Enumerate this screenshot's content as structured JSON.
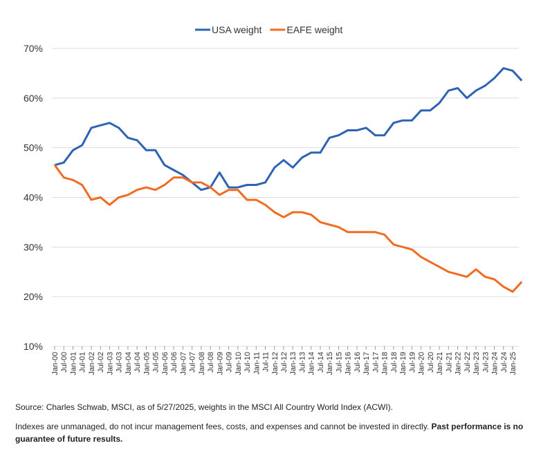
{
  "chart_data": {
    "type": "line",
    "categories": [
      "Jan-00",
      "Jul-00",
      "Jan-01",
      "Jul-01",
      "Jan-02",
      "Jul-02",
      "Jan-03",
      "Jul-03",
      "Jan-04",
      "Jul-04",
      "Jan-05",
      "Jul-05",
      "Jan-06",
      "Jul-06",
      "Jan-07",
      "Jul-07",
      "Jan-08",
      "Jul-08",
      "Jan-09",
      "Jul-09",
      "Jan-10",
      "Jul-10",
      "Jan-11",
      "Jul-11",
      "Jan-12",
      "Jul-12",
      "Jan-13",
      "Jul-13",
      "Jan-14",
      "Jul-14",
      "Jan-15",
      "Jul-15",
      "Jan-16",
      "Jul-16",
      "Jan-17",
      "Jul-17",
      "Jan-18",
      "Jul-18",
      "Jan-19",
      "Jul-19",
      "Jan-20",
      "Jul-20",
      "Jan-21",
      "Jul-21",
      "Jan-22",
      "Jul-22",
      "Jan-23",
      "Jul-23",
      "Jan-24",
      "Jul-24",
      "Jan-25",
      null
    ],
    "series": [
      {
        "name": "USA weight",
        "color": "#2e62b5",
        "values": [
          46.5,
          47,
          49.5,
          50.5,
          54,
          54.5,
          55,
          54,
          52,
          51.5,
          49.5,
          49.5,
          46.5,
          45.5,
          44.5,
          43,
          41.5,
          42,
          45,
          42,
          42,
          42.5,
          42.5,
          43,
          46,
          47.5,
          46,
          48,
          49,
          49,
          52,
          52.5,
          53.5,
          53.5,
          54,
          52.5,
          52.5,
          55,
          55.5,
          55.5,
          57.5,
          57.5,
          59,
          61.5,
          62,
          60,
          61.5,
          62.5,
          64,
          66,
          65.5,
          63.5
        ]
      },
      {
        "name": "EAFE weight",
        "color": "#f26b21",
        "values": [
          46.5,
          44,
          43.5,
          42.5,
          39.5,
          40,
          38.5,
          40,
          40.5,
          41.5,
          42,
          41.5,
          42.5,
          44,
          44,
          43,
          43,
          42,
          40.5,
          41.5,
          41.5,
          39.5,
          39.5,
          38.5,
          37,
          36,
          37,
          37,
          36.5,
          35,
          34.5,
          34,
          33,
          33,
          33,
          33,
          32.5,
          30.5,
          30,
          29.5,
          28,
          27,
          26,
          25,
          24.5,
          24,
          25.5,
          24,
          23.5,
          22,
          21,
          23
        ]
      }
    ],
    "ylim": [
      10,
      70
    ],
    "yticks": [
      {
        "value": 10,
        "label": "10%"
      },
      {
        "value": 20,
        "label": "20%"
      },
      {
        "value": 30,
        "label": "30%"
      },
      {
        "value": 40,
        "label": "40%"
      },
      {
        "value": 50,
        "label": "50%"
      },
      {
        "value": 60,
        "label": "60%"
      },
      {
        "value": 70,
        "label": "70%"
      }
    ],
    "grid": true,
    "legend": "top",
    "source": "Source: Charles Schwab, MSCI, as of 5/27/2025, weights in the MSCI All Country World Index (ACWI).",
    "disclaimer": "Indexes are unmanaged, do not incur management fees, costs, and expenses and cannot be invested in directly.",
    "disclaimer_bold": "Past performance is no guarantee of future results."
  }
}
